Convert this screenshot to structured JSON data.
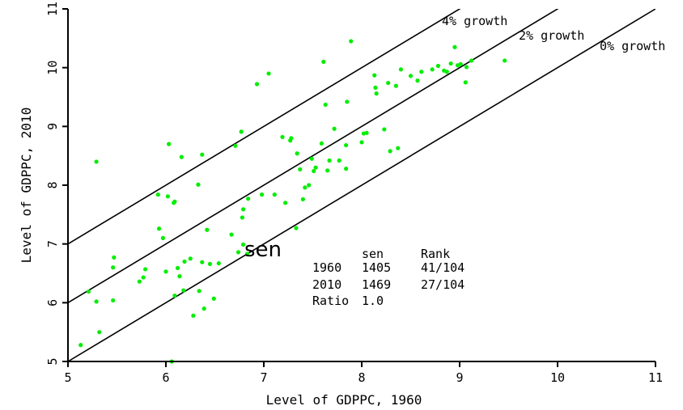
{
  "chart_data": {
    "type": "scatter",
    "title": "",
    "xlabel": "Level of GDPPC, 1960",
    "ylabel": "Level of GDPPC, 2010",
    "xlim": [
      5,
      11
    ],
    "ylim": [
      5,
      11
    ],
    "xticks": [
      "5",
      "6",
      "7",
      "8",
      "9",
      "10",
      "11"
    ],
    "yticks": [
      "5",
      "6",
      "7",
      "8",
      "9",
      "10",
      "11"
    ],
    "grid": false,
    "point_color": "#00ee00",
    "reference_lines": [
      {
        "label": "4% growth",
        "intercept": 2.0
      },
      {
        "label": "2% growth",
        "intercept": 1.0
      },
      {
        "label": "0% growth",
        "intercept": 0.0
      }
    ],
    "highlight": {
      "label": "sen",
      "x": 6.79,
      "y": 6.92
    },
    "stats_table": {
      "header": [
        "",
        "sen",
        "Rank"
      ],
      "rows": [
        [
          "1960",
          "1405",
          "41/104"
        ],
        [
          "2010",
          "1469",
          "27/104"
        ],
        [
          "Ratio",
          "1.0",
          ""
        ]
      ]
    },
    "points": [
      [
        5.13,
        5.28
      ],
      [
        5.21,
        6.19
      ],
      [
        5.29,
        8.4
      ],
      [
        5.29,
        6.02
      ],
      [
        5.32,
        5.5
      ],
      [
        5.46,
        6.6
      ],
      [
        5.47,
        6.77
      ],
      [
        5.46,
        6.04
      ],
      [
        5.73,
        6.36
      ],
      [
        5.77,
        6.43
      ],
      [
        5.79,
        6.57
      ],
      [
        5.92,
        7.84
      ],
      [
        5.93,
        7.26
      ],
      [
        5.97,
        7.1
      ],
      [
        6.02,
        7.81
      ],
      [
        6.03,
        8.7
      ],
      [
        6.0,
        6.53
      ],
      [
        6.06,
        5.0
      ],
      [
        6.08,
        7.7
      ],
      [
        6.09,
        7.72
      ],
      [
        6.09,
        6.12
      ],
      [
        6.12,
        6.59
      ],
      [
        6.14,
        6.45
      ],
      [
        6.16,
        8.48
      ],
      [
        6.19,
        6.7
      ],
      [
        6.18,
        6.21
      ],
      [
        6.25,
        6.75
      ],
      [
        6.28,
        5.78
      ],
      [
        6.33,
        8.01
      ],
      [
        6.34,
        6.2
      ],
      [
        6.37,
        8.52
      ],
      [
        6.37,
        6.69
      ],
      [
        6.39,
        5.9
      ],
      [
        6.42,
        7.24
      ],
      [
        6.45,
        6.66
      ],
      [
        6.49,
        6.07
      ],
      [
        6.54,
        6.67
      ],
      [
        6.67,
        7.16
      ],
      [
        6.71,
        8.67
      ],
      [
        6.74,
        6.86
      ],
      [
        6.77,
        8.91
      ],
      [
        6.78,
        7.45
      ],
      [
        6.79,
        7.59
      ],
      [
        6.84,
        7.77
      ],
      [
        6.79,
        6.99
      ],
      [
        6.83,
        6.83
      ],
      [
        6.93,
        9.72
      ],
      [
        6.98,
        7.84
      ],
      [
        7.05,
        9.9
      ],
      [
        7.11,
        7.84
      ],
      [
        7.19,
        8.82
      ],
      [
        7.22,
        7.7
      ],
      [
        7.27,
        8.76
      ],
      [
        7.28,
        8.8
      ],
      [
        7.33,
        7.27
      ],
      [
        7.34,
        8.54
      ],
      [
        7.37,
        8.27
      ],
      [
        7.4,
        7.76
      ],
      [
        7.42,
        7.96
      ],
      [
        7.46,
        8.0
      ],
      [
        7.49,
        8.45
      ],
      [
        7.51,
        8.24
      ],
      [
        7.53,
        8.3
      ],
      [
        7.59,
        8.71
      ],
      [
        7.61,
        10.1
      ],
      [
        7.63,
        9.37
      ],
      [
        7.65,
        8.25
      ],
      [
        7.67,
        8.42
      ],
      [
        7.72,
        8.96
      ],
      [
        7.77,
        8.42
      ],
      [
        7.84,
        8.68
      ],
      [
        7.85,
        9.42
      ],
      [
        7.84,
        8.28
      ],
      [
        7.89,
        10.45
      ],
      [
        8.0,
        8.73
      ],
      [
        8.02,
        8.88
      ],
      [
        8.05,
        8.89
      ],
      [
        8.13,
        9.87
      ],
      [
        8.14,
        9.66
      ],
      [
        8.15,
        9.56
      ],
      [
        8.23,
        8.95
      ],
      [
        8.27,
        9.74
      ],
      [
        8.29,
        8.58
      ],
      [
        8.35,
        9.69
      ],
      [
        8.37,
        8.63
      ],
      [
        8.4,
        9.97
      ],
      [
        8.5,
        9.86
      ],
      [
        8.57,
        9.78
      ],
      [
        8.61,
        9.93
      ],
      [
        8.72,
        9.97
      ],
      [
        8.78,
        10.03
      ],
      [
        8.84,
        9.95
      ],
      [
        8.87,
        9.93
      ],
      [
        8.91,
        10.07
      ],
      [
        8.95,
        10.35
      ],
      [
        8.98,
        10.04
      ],
      [
        9.01,
        10.06
      ],
      [
        9.06,
        9.75
      ],
      [
        9.07,
        10.01
      ],
      [
        9.12,
        10.12
      ],
      [
        9.46,
        10.12
      ]
    ]
  }
}
